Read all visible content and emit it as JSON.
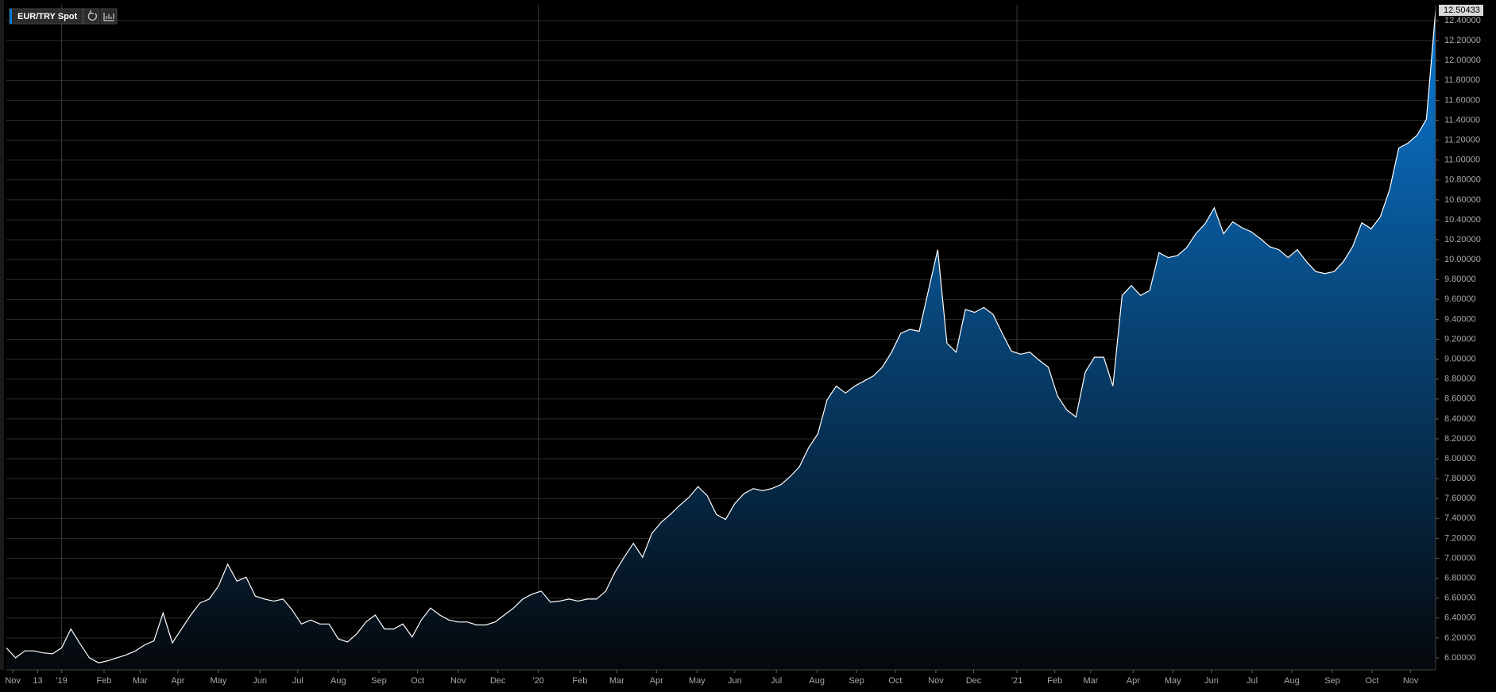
{
  "chart_data": {
    "type": "area",
    "series": [
      {
        "name": "EUR/TRY Spot",
        "color": "#0a7ad6",
        "line_color": "#ffffff",
        "values": [
          6.1,
          6.0,
          6.07,
          6.07,
          6.05,
          6.04,
          6.1,
          6.29,
          6.14,
          6.0,
          5.95,
          5.97,
          6.0,
          6.03,
          6.07,
          6.13,
          6.17,
          6.45,
          6.15,
          6.29,
          6.43,
          6.55,
          6.59,
          6.72,
          6.94,
          6.77,
          6.81,
          6.62,
          6.59,
          6.57,
          6.59,
          6.48,
          6.34,
          6.38,
          6.34,
          6.34,
          6.19,
          6.16,
          6.24,
          6.36,
          6.43,
          6.29,
          6.29,
          6.34,
          6.21,
          6.38,
          6.5,
          6.43,
          6.38,
          6.36,
          6.36,
          6.33,
          6.33,
          6.36,
          6.43,
          6.5,
          6.59,
          6.64,
          6.67,
          6.56,
          6.57,
          6.59,
          6.57,
          6.59,
          6.59,
          6.67,
          6.86,
          7.01,
          7.15,
          7.01,
          7.25,
          7.36,
          7.44,
          7.53,
          7.61,
          7.72,
          7.63,
          7.44,
          7.39,
          7.55,
          7.65,
          7.7,
          7.68,
          7.7,
          7.74,
          7.82,
          7.92,
          8.11,
          8.25,
          8.59,
          8.73,
          8.66,
          8.73,
          8.78,
          8.83,
          8.92,
          9.07,
          9.26,
          9.3,
          9.28,
          9.69,
          10.1,
          9.16,
          9.07,
          9.5,
          9.47,
          9.52,
          9.45,
          9.26,
          9.08,
          9.05,
          9.07,
          8.99,
          8.92,
          8.63,
          8.49,
          8.42,
          8.87,
          9.02,
          9.02,
          8.73,
          9.64,
          9.74,
          9.64,
          9.69,
          10.07,
          10.02,
          10.04,
          10.12,
          10.26,
          10.36,
          10.52,
          10.26,
          10.38,
          10.32,
          10.28,
          10.21,
          10.13,
          10.1,
          10.02,
          10.1,
          9.98,
          9.88,
          9.86,
          9.88,
          9.98,
          10.13,
          10.37,
          10.31,
          10.43,
          10.7,
          11.12,
          11.17,
          11.25,
          11.41,
          12.50433
        ]
      }
    ],
    "xlim": [
      0,
      155
    ],
    "xticks": [
      {
        "value": 0.7,
        "label": "Nov"
      },
      {
        "value": 3.4,
        "label": "13"
      },
      {
        "value": 6.0,
        "label": "'19"
      },
      {
        "value": 10.6,
        "label": "Feb"
      },
      {
        "value": 14.5,
        "label": "Mar"
      },
      {
        "value": 18.6,
        "label": "Apr"
      },
      {
        "value": 23.0,
        "label": "May"
      },
      {
        "value": 27.5,
        "label": "Jun"
      },
      {
        "value": 31.6,
        "label": "Jul"
      },
      {
        "value": 36.0,
        "label": "Aug"
      },
      {
        "value": 40.4,
        "label": "Sep"
      },
      {
        "value": 44.6,
        "label": "Oct"
      },
      {
        "value": 49.0,
        "label": "Nov"
      },
      {
        "value": 53.3,
        "label": "Dec"
      },
      {
        "value": 57.7,
        "label": "'20"
      },
      {
        "value": 62.2,
        "label": "Feb"
      },
      {
        "value": 66.2,
        "label": "Mar"
      },
      {
        "value": 70.5,
        "label": "Apr"
      },
      {
        "value": 74.9,
        "label": "May"
      },
      {
        "value": 79.0,
        "label": "Jun"
      },
      {
        "value": 83.5,
        "label": "Jul"
      },
      {
        "value": 87.9,
        "label": "Aug"
      },
      {
        "value": 92.2,
        "label": "Sep"
      },
      {
        "value": 96.4,
        "label": "Oct"
      },
      {
        "value": 100.8,
        "label": "Nov"
      },
      {
        "value": 104.9,
        "label": "Dec"
      },
      {
        "value": 109.6,
        "label": "'21"
      },
      {
        "value": 113.7,
        "label": "Feb"
      },
      {
        "value": 117.6,
        "label": "Mar"
      },
      {
        "value": 122.2,
        "label": "Apr"
      },
      {
        "value": 126.5,
        "label": "May"
      },
      {
        "value": 130.7,
        "label": "Jun"
      },
      {
        "value": 135.1,
        "label": "Jul"
      },
      {
        "value": 139.4,
        "label": "Aug"
      },
      {
        "value": 143.8,
        "label": "Sep"
      },
      {
        "value": 148.1,
        "label": "Oct"
      },
      {
        "value": 152.3,
        "label": "Nov"
      }
    ],
    "ylim": [
      5.88,
      12.56
    ],
    "yticks": [
      {
        "value": 6.0,
        "label": "6.00000"
      },
      {
        "value": 6.2,
        "label": "6.20000"
      },
      {
        "value": 6.4,
        "label": "6.40000"
      },
      {
        "value": 6.6,
        "label": "6.60000"
      },
      {
        "value": 6.8,
        "label": "6.80000"
      },
      {
        "value": 7.0,
        "label": "7.00000"
      },
      {
        "value": 7.2,
        "label": "7.20000"
      },
      {
        "value": 7.4,
        "label": "7.40000"
      },
      {
        "value": 7.6,
        "label": "7.60000"
      },
      {
        "value": 7.8,
        "label": "7.80000"
      },
      {
        "value": 8.0,
        "label": "8.00000"
      },
      {
        "value": 8.2,
        "label": "8.20000"
      },
      {
        "value": 8.4,
        "label": "8.40000"
      },
      {
        "value": 8.6,
        "label": "8.60000"
      },
      {
        "value": 8.8,
        "label": "8.80000"
      },
      {
        "value": 9.0,
        "label": "9.00000"
      },
      {
        "value": 9.2,
        "label": "9.20000"
      },
      {
        "value": 9.4,
        "label": "9.40000"
      },
      {
        "value": 9.6,
        "label": "9.60000"
      },
      {
        "value": 9.8,
        "label": "9.80000"
      },
      {
        "value": 10.0,
        "label": "10.00000"
      },
      {
        "value": 10.2,
        "label": "10.20000"
      },
      {
        "value": 10.4,
        "label": "10.40000"
      },
      {
        "value": 10.6,
        "label": "10.60000"
      },
      {
        "value": 10.8,
        "label": "10.80000"
      },
      {
        "value": 11.0,
        "label": "11.00000"
      },
      {
        "value": 11.2,
        "label": "11.20000"
      },
      {
        "value": 11.4,
        "label": "11.40000"
      },
      {
        "value": 11.6,
        "label": "11.60000"
      },
      {
        "value": 11.8,
        "label": "11.80000"
      },
      {
        "value": 12.0,
        "label": "12.00000"
      },
      {
        "value": 12.2,
        "label": "12.20000"
      },
      {
        "value": 12.4,
        "label": "12.40000"
      }
    ],
    "grid": true
  }
}
